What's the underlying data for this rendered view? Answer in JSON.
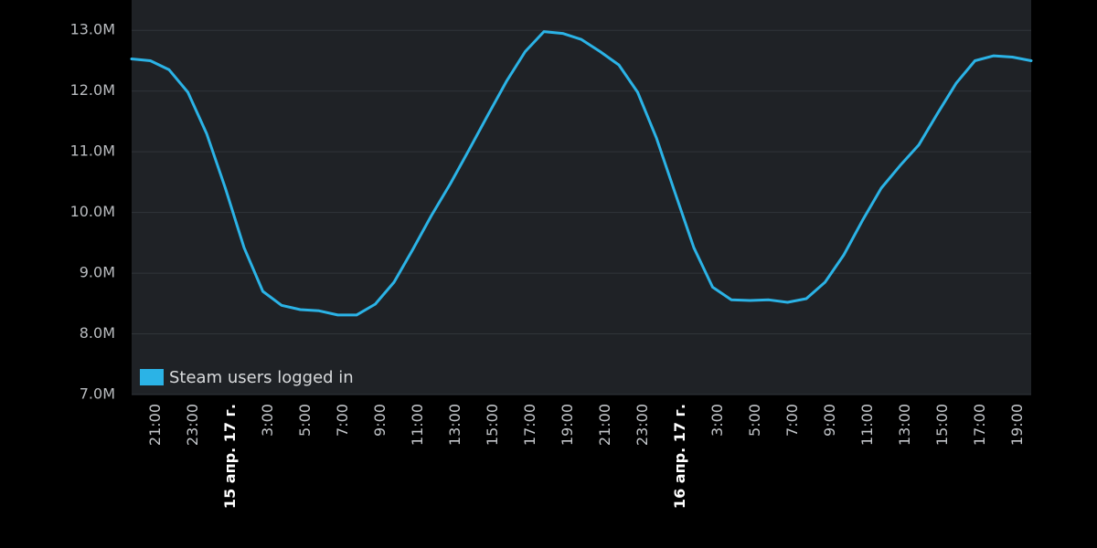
{
  "chart_data": {
    "type": "line",
    "categories": [
      null,
      "21:00",
      null,
      "23:00",
      null,
      "15 апр. 17 г.",
      null,
      "3:00",
      null,
      "5:00",
      null,
      "7:00",
      null,
      "9:00",
      null,
      "11:00",
      null,
      "13:00",
      null,
      "15:00",
      null,
      "17:00",
      null,
      "19:00",
      null,
      "21:00",
      null,
      "23:00",
      null,
      "16 апр. 17 г.",
      null,
      "3:00",
      null,
      "5:00",
      null,
      "7:00",
      null,
      "9:00",
      null,
      "11:00",
      null,
      "13:00",
      null,
      "15:00",
      null,
      "17:00",
      null,
      "19:00",
      null
    ],
    "series": [
      {
        "name": "Steam users logged in",
        "color": "#2bb3e6",
        "values": [
          12530000,
          12500000,
          12350000,
          11980000,
          11300000,
          10400000,
          9420000,
          8700000,
          8470000,
          8400000,
          8380000,
          8310000,
          8310000,
          8490000,
          8850000,
          9390000,
          9950000,
          10470000,
          11030000,
          11600000,
          12160000,
          12650000,
          12980000,
          12950000,
          12850000,
          12650000,
          12430000,
          11980000,
          11230000,
          10320000,
          9420000,
          8770000,
          8560000,
          8550000,
          8560000,
          8520000,
          8580000,
          8850000,
          9300000,
          9870000,
          10400000,
          10770000,
          11110000,
          11630000,
          12130000,
          12500000,
          12580000,
          12560000,
          12500000
        ]
      }
    ],
    "ylim": [
      7000000,
      13500000
    ],
    "yticks": [
      {
        "value": 7000000,
        "label": "7.0M"
      },
      {
        "value": 8000000,
        "label": "8.0M"
      },
      {
        "value": 9000000,
        "label": "9.0M"
      },
      {
        "value": 10000000,
        "label": "10.0M"
      },
      {
        "value": 11000000,
        "label": "11.0M"
      },
      {
        "value": 12000000,
        "label": "12.0M"
      },
      {
        "value": 13000000,
        "label": "13.0M"
      }
    ],
    "grid": true,
    "legend": "bottom-left"
  }
}
